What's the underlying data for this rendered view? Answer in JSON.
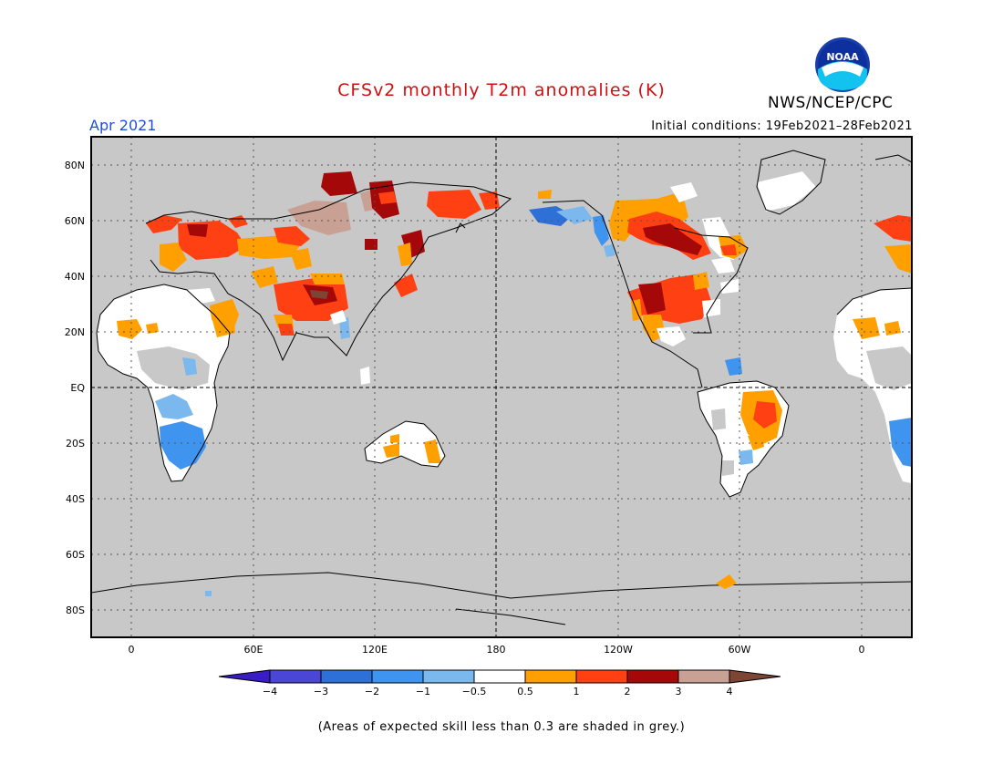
{
  "header": {
    "title": "CFSv2 monthly T2m anomalies (K)",
    "org": "NWS/NCEP/CPC",
    "month": "Apr 2021",
    "initial_conditions": "Initial conditions: 19Feb2021–28Feb2021"
  },
  "logo": {
    "text": "NOAA",
    "icon": "noaa-logo"
  },
  "map": {
    "lat_labels": [
      "80N",
      "60N",
      "40N",
      "20N",
      "EQ",
      "20S",
      "40S",
      "60S",
      "80S"
    ],
    "lon_labels": [
      "0",
      "60E",
      "120E",
      "180",
      "120W",
      "60W",
      "0"
    ],
    "background_color": "#c8c8c8"
  },
  "colorbar": {
    "labels": [
      "−4",
      "−3",
      "−2",
      "−1",
      "−0.5",
      "0.5",
      "1",
      "2",
      "3",
      "4"
    ],
    "colors": [
      "#3a1cc4",
      "#4a46d6",
      "#2e6fd8",
      "#3f94f0",
      "#7ab8ee",
      "#ffffff",
      "#ffa000",
      "#ff4012",
      "#a40808",
      "#c9a194",
      "#7d4634"
    ]
  },
  "footnote": "(Areas of expected skill less than 0.3 are shaded in grey.)"
}
